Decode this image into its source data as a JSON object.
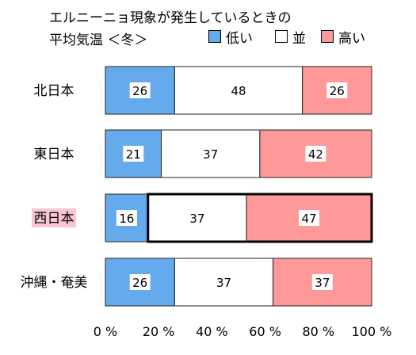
{
  "title": {
    "line1": "エルニーニョ現象が発生しているときの",
    "line2": "平均気温 ＜冬＞"
  },
  "legend": [
    {
      "label": "低い",
      "color": "#66aaee"
    },
    {
      "label": "並",
      "color": "#ffffff"
    },
    {
      "label": "高い",
      "color": "#ff9999"
    }
  ],
  "chart_data": {
    "type": "bar",
    "orientation": "horizontal",
    "stacked": true,
    "title": "エルニーニョ現象が発生しているときの 平均気温 ＜冬＞",
    "categories": [
      "北日本",
      "東日本",
      "西日本",
      "沖縄・奄美"
    ],
    "series": [
      {
        "name": "低い",
        "values": [
          26,
          21,
          16,
          26
        ],
        "color": "#66aaee"
      },
      {
        "name": "並",
        "values": [
          48,
          37,
          37,
          37
        ],
        "color": "#ffffff"
      },
      {
        "name": "高い",
        "values": [
          26,
          42,
          47,
          37
        ],
        "color": "#ff9999"
      }
    ],
    "xlim": [
      0,
      100
    ],
    "x_ticks": [
      "0 %",
      "20 %",
      "40 %",
      "60 %",
      "80 %",
      "100 %"
    ],
    "highlighted_category": "西日本",
    "highlight_label_color": "#f7c6cf",
    "grid": false,
    "legend_position": "top-right"
  }
}
